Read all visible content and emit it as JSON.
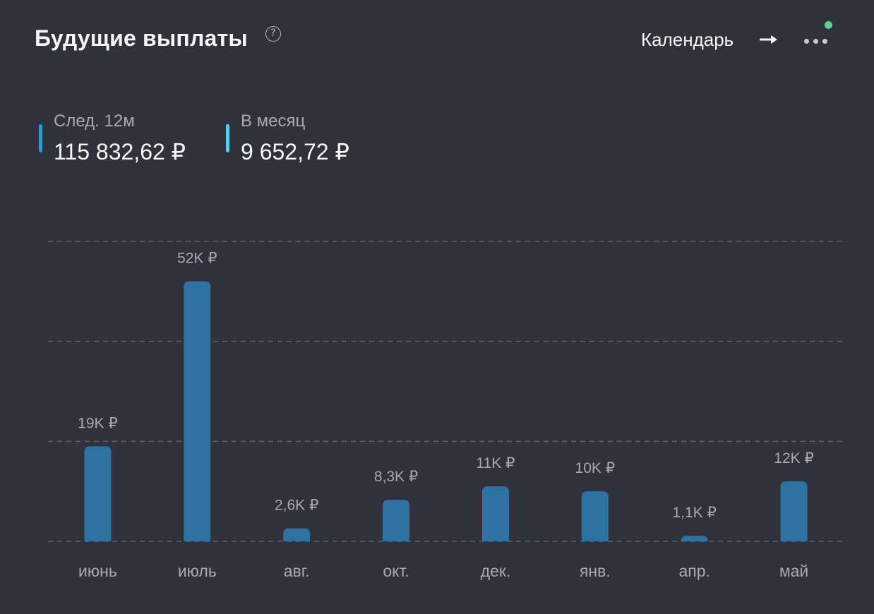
{
  "header": {
    "title": "Будущие выплаты",
    "help_symbol": "?",
    "calendar_label": "Календарь",
    "arrow_icon": "arrow-right-icon",
    "more_icon": "more-horizontal-icon"
  },
  "stats": [
    {
      "label": "След. 12м",
      "value": "115 832,62 ₽",
      "color": "#12a4f0"
    },
    {
      "label": "В месяц",
      "value": "9 652,72 ₽",
      "color": "#5ad0e6"
    }
  ],
  "colors": {
    "background": "#31313c",
    "bar": "#2e72a2",
    "gridline": "#5e5e6c",
    "status_dot": "#55d68d"
  },
  "chart_data": {
    "type": "bar",
    "title": "",
    "xlabel": "",
    "ylabel": "",
    "categories": [
      "июнь",
      "июль",
      "авг.",
      "окт.",
      "дек.",
      "янв.",
      "апр.",
      "май"
    ],
    "values": [
      19000,
      52000,
      2600,
      8300,
      11000,
      10000,
      1100,
      12000
    ],
    "value_labels": [
      "19K ₽",
      "52K ₽",
      "2,6K ₽",
      "8,3K ₽",
      "11K ₽",
      "10K ₽",
      "1,1K ₽",
      "12K ₽"
    ],
    "ylim": [
      0,
      60000
    ],
    "y_gridlines": [
      0,
      20000,
      40000,
      60000
    ],
    "grid": true,
    "legend": "none"
  }
}
